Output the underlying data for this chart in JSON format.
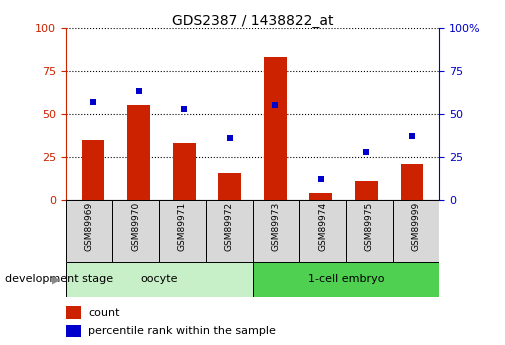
{
  "title": "GDS2387 / 1438822_at",
  "samples": [
    "GSM89969",
    "GSM89970",
    "GSM89971",
    "GSM89972",
    "GSM89973",
    "GSM89974",
    "GSM89975",
    "GSM89999"
  ],
  "counts": [
    35,
    55,
    33,
    16,
    83,
    4,
    11,
    21
  ],
  "percentiles": [
    57,
    63,
    53,
    36,
    55,
    12,
    28,
    37
  ],
  "group_labels": [
    "oocyte",
    "1-cell embryo"
  ],
  "group_colors": [
    "#c8f0c8",
    "#50d050"
  ],
  "group_starts": [
    0,
    4
  ],
  "group_ends": [
    4,
    8
  ],
  "bar_color": "#CC2200",
  "dot_color": "#0000CC",
  "tick_label_color_left": "#CC2200",
  "tick_label_color_right": "#0000CC",
  "ylim": [
    0,
    100
  ],
  "yticks": [
    0,
    25,
    50,
    75,
    100
  ],
  "right_ytick_labels": [
    "0",
    "25",
    "50",
    "75",
    "100%"
  ],
  "bar_width": 0.5,
  "legend_count_label": "count",
  "legend_percentile_label": "percentile rank within the sample",
  "development_stage_label": "development stage"
}
